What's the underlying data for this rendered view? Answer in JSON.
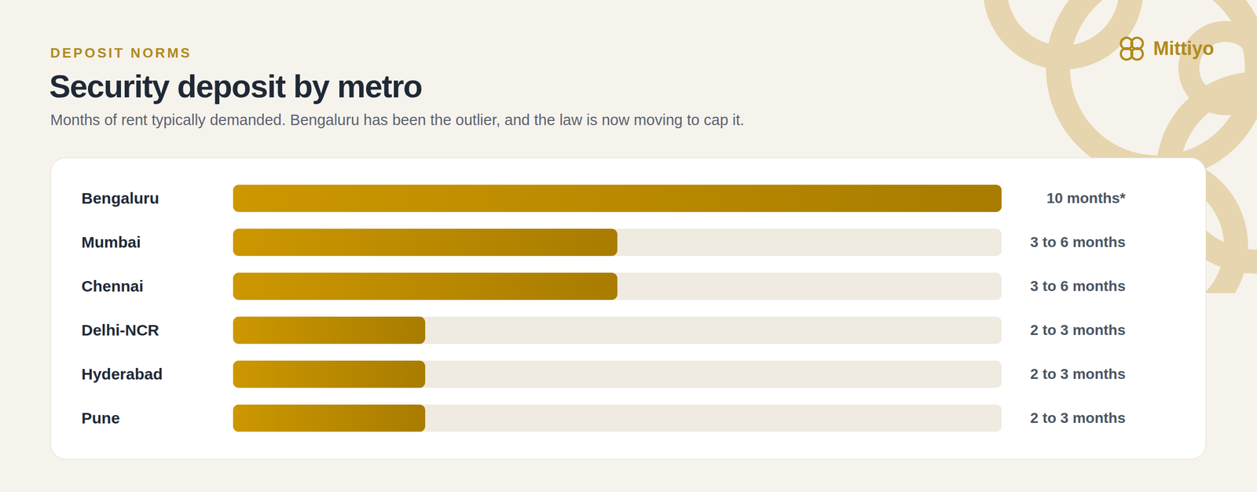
{
  "chart_data": {
    "type": "bar",
    "orientation": "horizontal",
    "kicker": "DEPOSIT NORMS",
    "title": "Security deposit by metro",
    "subtitle": "Months of rent typically demanded. Bengaluru has been the outlier, and the law is now moving to cap it.",
    "brand": "Mittiyo",
    "categories": [
      "Bengaluru",
      "Mumbai",
      "Chennai",
      "Delhi-NCR",
      "Hyderabad",
      "Pune"
    ],
    "values": [
      10,
      5,
      5,
      2.5,
      2.5,
      2.5
    ],
    "value_labels": [
      "10 months*",
      "3 to 6 months",
      "3 to 6 months",
      "2 to 3 months",
      "2 to 3 months",
      "2 to 3 months"
    ],
    "data_labels": true,
    "xlim": [
      0,
      10
    ],
    "color": "#a87c00",
    "tick_labels": false,
    "grid": false
  }
}
